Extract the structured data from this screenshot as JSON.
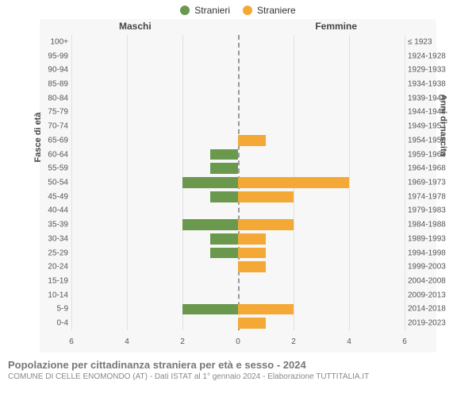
{
  "legend": {
    "male": {
      "label": "Stranieri",
      "color": "#6a994e"
    },
    "female": {
      "label": "Straniere",
      "color": "#f4a836"
    }
  },
  "headers": {
    "male": "Maschi",
    "female": "Femmine"
  },
  "axis_titles": {
    "left": "Fasce di età",
    "right": "Anni di nascita"
  },
  "chart": {
    "type": "bar",
    "xlim": 6,
    "xticks": [
      6,
      4,
      2,
      0,
      2,
      4,
      6
    ],
    "background": "#f7f7f7",
    "grid_color": "#e0e0e0",
    "center_dash_color": "#999999",
    "rows": [
      {
        "age": "100+",
        "years": "≤ 1923",
        "m": 0,
        "f": 0
      },
      {
        "age": "95-99",
        "years": "1924-1928",
        "m": 0,
        "f": 0
      },
      {
        "age": "90-94",
        "years": "1929-1933",
        "m": 0,
        "f": 0
      },
      {
        "age": "85-89",
        "years": "1934-1938",
        "m": 0,
        "f": 0
      },
      {
        "age": "80-84",
        "years": "1939-1943",
        "m": 0,
        "f": 0
      },
      {
        "age": "75-79",
        "years": "1944-1948",
        "m": 0,
        "f": 0
      },
      {
        "age": "70-74",
        "years": "1949-1953",
        "m": 0,
        "f": 0
      },
      {
        "age": "65-69",
        "years": "1954-1958",
        "m": 0,
        "f": 1
      },
      {
        "age": "60-64",
        "years": "1959-1963",
        "m": 1,
        "f": 0
      },
      {
        "age": "55-59",
        "years": "1964-1968",
        "m": 1,
        "f": 0
      },
      {
        "age": "50-54",
        "years": "1969-1973",
        "m": 2,
        "f": 4
      },
      {
        "age": "45-49",
        "years": "1974-1978",
        "m": 1,
        "f": 2
      },
      {
        "age": "40-44",
        "years": "1979-1983",
        "m": 0,
        "f": 0
      },
      {
        "age": "35-39",
        "years": "1984-1988",
        "m": 2,
        "f": 2
      },
      {
        "age": "30-34",
        "years": "1989-1993",
        "m": 1,
        "f": 1
      },
      {
        "age": "25-29",
        "years": "1994-1998",
        "m": 1,
        "f": 1
      },
      {
        "age": "20-24",
        "years": "1999-2003",
        "m": 0,
        "f": 1
      },
      {
        "age": "15-19",
        "years": "2004-2008",
        "m": 0,
        "f": 0
      },
      {
        "age": "10-14",
        "years": "2009-2013",
        "m": 0,
        "f": 0
      },
      {
        "age": "5-9",
        "years": "2014-2018",
        "m": 2,
        "f": 2
      },
      {
        "age": "0-4",
        "years": "2019-2023",
        "m": 0,
        "f": 1
      }
    ]
  },
  "footer": {
    "title": "Popolazione per cittadinanza straniera per età e sesso - 2024",
    "subtitle": "COMUNE DI CELLE ENOMONDO (AT) - Dati ISTAT al 1° gennaio 2024 - Elaborazione TUTTITALIA.IT"
  }
}
